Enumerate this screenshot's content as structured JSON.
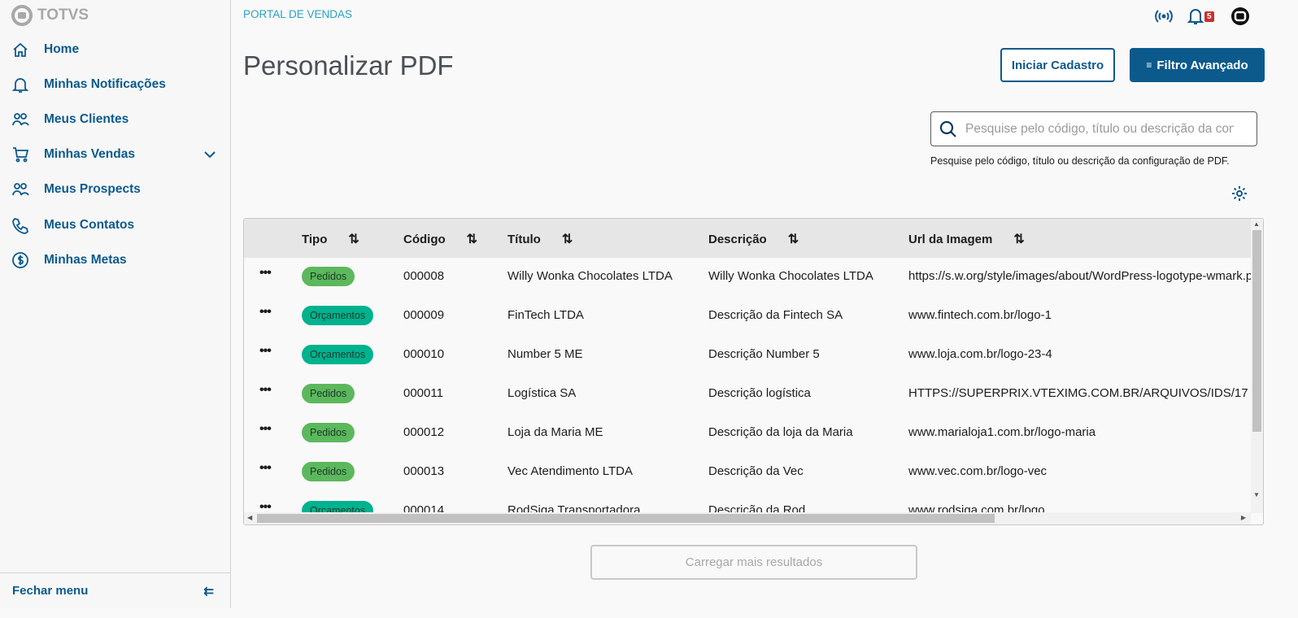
{
  "brand": {
    "logo_text": "TOTVS",
    "portal": "PORTAL DE VENDAS"
  },
  "sidebar": {
    "items": [
      {
        "label": "Home",
        "icon": "home-icon"
      },
      {
        "label": "Minhas Notificações",
        "icon": "bell-icon"
      },
      {
        "label": "Meus Clientes",
        "icon": "users-icon"
      },
      {
        "label": "Minhas Vendas",
        "icon": "cart-icon",
        "expandable": true
      },
      {
        "label": "Meus Prospects",
        "icon": "users-icon"
      },
      {
        "label": "Meus Contatos",
        "icon": "phone-icon"
      },
      {
        "label": "Minhas Metas",
        "icon": "dollar-icon"
      }
    ],
    "close_label": "Fechar menu"
  },
  "header": {
    "notifications_count": "5"
  },
  "page": {
    "title": "Personalizar PDF",
    "start_button": "Iniciar Cadastro",
    "filter_button": "Filtro Avançado"
  },
  "search": {
    "placeholder": "Pesquise pelo código, título ou descrição da configuração de PDF.",
    "help": "Pesquise pelo código, título ou descrição da configuração de PDF."
  },
  "table": {
    "columns": [
      "Tipo",
      "Código",
      "Título",
      "Descrição",
      "Url da Imagem"
    ],
    "rows": [
      {
        "tipo": "Pedidos",
        "codigo": "000008",
        "titulo": "Willy Wonka Chocolates LTDA",
        "descricao": "Willy Wonka Chocolates LTDA",
        "url": "https://s.w.org/style/images/about/WordPress-logotype-wmark.png"
      },
      {
        "tipo": "Orçamentos",
        "codigo": "000009",
        "titulo": "FinTech LTDA",
        "descricao": "Descrição da Fintech SA",
        "url": "www.fintech.com.br/logo-1"
      },
      {
        "tipo": "Orçamentos",
        "codigo": "000010",
        "titulo": "Number 5 ME",
        "descricao": "Descrição Number 5",
        "url": "www.loja.com.br/logo-23-4"
      },
      {
        "tipo": "Pedidos",
        "codigo": "000011",
        "titulo": "Logística SA",
        "descricao": "Descrição logística",
        "url": "HTTPS://SUPERPRIX.VTEXIMG.COM.BR/ARQUIVOS/IDS/17"
      },
      {
        "tipo": "Pedidos",
        "codigo": "000012",
        "titulo": "Loja da Maria ME",
        "descricao": "Descrição da loja da Maria",
        "url": "www.marialoja1.com.br/logo-maria"
      },
      {
        "tipo": "Pedidos",
        "codigo": "000013",
        "titulo": "Vec Atendimento LTDA",
        "descricao": "Descrição da Vec",
        "url": "www.vec.com.br/logo-vec"
      },
      {
        "tipo": "Orçamentos",
        "codigo": "000014",
        "titulo": "RodSiga Transportadora",
        "descricao": "Descrição da Rod",
        "url": "www.rodsiga.com.br/logo"
      }
    ]
  },
  "tag_colors": {
    "Pedidos": "#5cb85c",
    "Orçamentos": "#00b28e"
  },
  "load_more": "Carregar mais resultados"
}
